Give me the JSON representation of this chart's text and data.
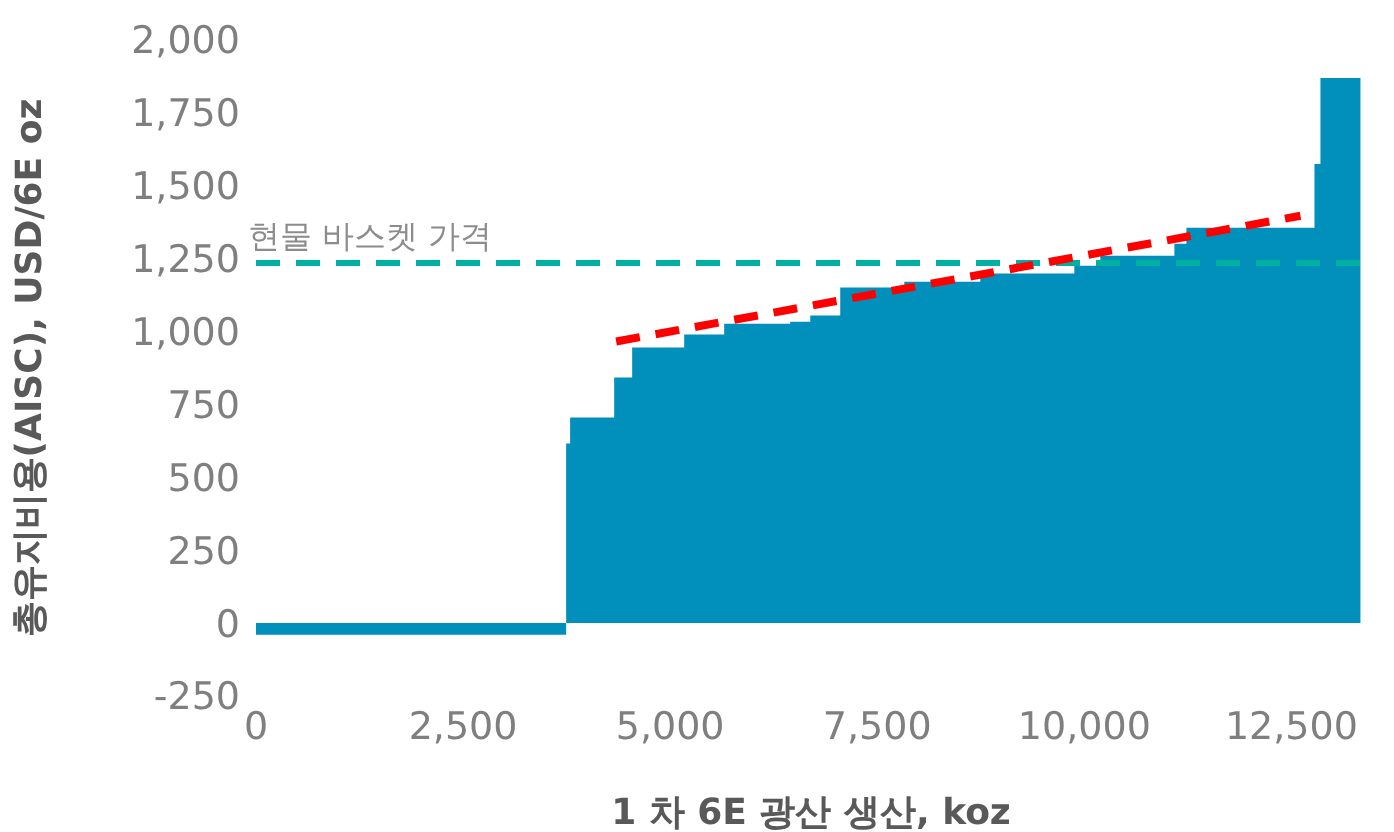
{
  "chart_data": {
    "type": "area",
    "xlabel": "1 차 6E 광산 생산, koz",
    "ylabel": "총유지비용(AISC), USD/6E oz",
    "xlim": [
      0,
      13400
    ],
    "xticks": [
      {
        "value": 0,
        "label": "0"
      },
      {
        "value": 2500,
        "label": "2,500"
      },
      {
        "value": 5000,
        "label": "5,000"
      },
      {
        "value": 7500,
        "label": "7,500"
      },
      {
        "value": 10000,
        "label": "10,000"
      },
      {
        "value": 12500,
        "label": "12,500"
      }
    ],
    "ylim": [
      -250,
      2000
    ],
    "yticks": [
      {
        "value": -250,
        "label": "-250"
      },
      {
        "value": 0,
        "label": "0"
      },
      {
        "value": 250,
        "label": "250"
      },
      {
        "value": 500,
        "label": "500"
      },
      {
        "value": 750,
        "label": "750"
      },
      {
        "value": 1000,
        "label": "1,000"
      },
      {
        "value": 1250,
        "label": "1,250"
      },
      {
        "value": 1500,
        "label": "1,500"
      },
      {
        "value": 1750,
        "label": "1,750"
      },
      {
        "value": 2000,
        "label": "2,000"
      }
    ],
    "grid": false,
    "legend": false,
    "series": [
      {
        "color": "#0090bb",
        "x": [
          0,
          3744,
          3744,
          3792,
          3792,
          4324,
          4324,
          4541,
          4541,
          5169,
          5169,
          5652,
          5652,
          6449,
          6449,
          6691,
          6691,
          7053,
          7053,
          7826,
          7826,
          8744,
          8744,
          9879,
          9879,
          10193,
          10193,
          11087,
          11087,
          11232,
          11232,
          12778,
          12778,
          12850,
          12850,
          13333
        ],
        "values": [
          -40,
          -40,
          616,
          616,
          705,
          705,
          842,
          842,
          945,
          945,
          990,
          990,
          1027,
          1027,
          1034,
          1034,
          1055,
          1055,
          1151,
          1151,
          1171,
          1171,
          1199,
          1199,
          1226,
          1226,
          1260,
          1260,
          1301,
          1301,
          1356,
          1356,
          1575,
          1575,
          1870,
          1870
        ]
      },
      {
        "type": "line",
        "color": "#ff0000",
        "line_style": "dashed",
        "x": [
          4348,
          12609
        ],
        "values": [
          966,
          1397
        ]
      }
    ],
    "ref_lines": [
      {
        "axis": "y",
        "value": 1235,
        "label": "현물 바스켓 가격",
        "color": "#00b0a0",
        "line_style": "dashed"
      }
    ]
  }
}
